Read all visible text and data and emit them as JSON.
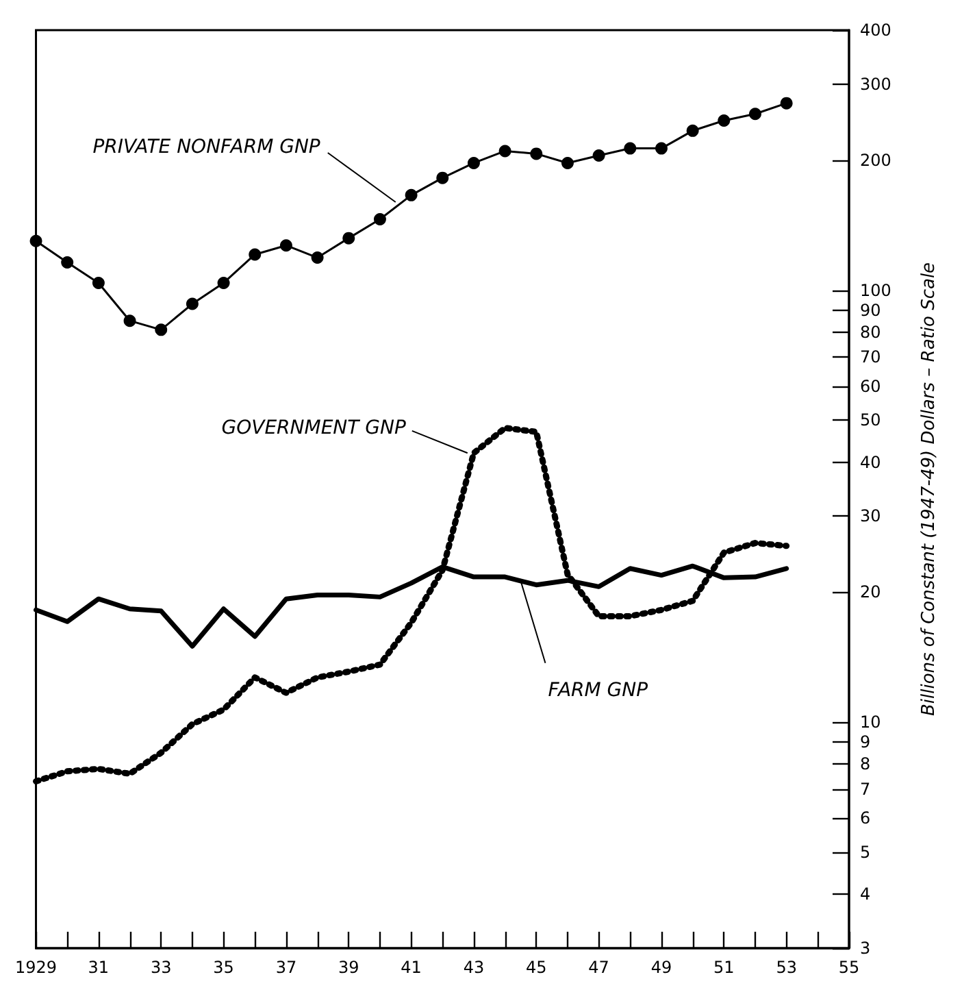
{
  "chart_data": {
    "type": "line",
    "ylabel": "Billions of Constant (1947-49) Dollars – Ratio Scale",
    "log": "y",
    "grid": false,
    "x": [
      1929,
      1930,
      1931,
      1932,
      1933,
      1934,
      1935,
      1936,
      1937,
      1938,
      1939,
      1940,
      1941,
      1942,
      1943,
      1944,
      1945,
      1946,
      1947,
      1948,
      1949,
      1950,
      1951,
      1952,
      1953
    ],
    "xlim": [
      1929,
      1955
    ],
    "xticks": [
      {
        "value": 1929,
        "label": "1929"
      },
      {
        "value": 1930,
        "label": null
      },
      {
        "value": 1931,
        "label": "31"
      },
      {
        "value": 1932,
        "label": null
      },
      {
        "value": 1933,
        "label": "33"
      },
      {
        "value": 1934,
        "label": null
      },
      {
        "value": 1935,
        "label": "35"
      },
      {
        "value": 1936,
        "label": null
      },
      {
        "value": 1937,
        "label": "37"
      },
      {
        "value": 1938,
        "label": null
      },
      {
        "value": 1939,
        "label": "39"
      },
      {
        "value": 1940,
        "label": null
      },
      {
        "value": 1941,
        "label": "41"
      },
      {
        "value": 1942,
        "label": null
      },
      {
        "value": 1943,
        "label": "43"
      },
      {
        "value": 1944,
        "label": null
      },
      {
        "value": 1945,
        "label": "45"
      },
      {
        "value": 1946,
        "label": null
      },
      {
        "value": 1947,
        "label": "47"
      },
      {
        "value": 1948,
        "label": null
      },
      {
        "value": 1949,
        "label": "49"
      },
      {
        "value": 1950,
        "label": null
      },
      {
        "value": 1951,
        "label": "51"
      },
      {
        "value": 1952,
        "label": null
      },
      {
        "value": 1953,
        "label": "53"
      },
      {
        "value": 1954,
        "label": null
      },
      {
        "value": 1955,
        "label": "55"
      }
    ],
    "ylim": [
      3,
      400
    ],
    "yticks": [
      3,
      4,
      5,
      6,
      7,
      8,
      9,
      10,
      20,
      30,
      40,
      50,
      60,
      70,
      80,
      90,
      100,
      200,
      300,
      400
    ],
    "series": [
      {
        "color": "#000000",
        "marker": "circle",
        "line_style": "solid",
        "values": [
          130,
          116,
          104,
          85,
          81,
          93,
          104,
          121,
          127,
          119,
          132,
          146,
          166,
          182,
          197,
          210,
          207,
          197,
          205,
          213,
          213,
          234,
          247,
          256,
          271
        ]
      },
      {
        "color": "#000000",
        "marker": "none",
        "line_style": "solid",
        "values": [
          18.2,
          17.1,
          19.3,
          18.3,
          18.1,
          15.0,
          18.3,
          15.8,
          19.3,
          19.7,
          19.7,
          19.5,
          21.0,
          22.9,
          21.7,
          21.7,
          20.8,
          21.3,
          20.6,
          22.7,
          21.9,
          23.0,
          21.6,
          21.7,
          22.7
        ]
      },
      {
        "color": "#000000",
        "marker": "none",
        "line_style": "dotted",
        "values": [
          7.3,
          7.7,
          7.8,
          7.6,
          8.5,
          9.9,
          10.7,
          12.7,
          11.7,
          12.7,
          13.1,
          13.6,
          17,
          22.5,
          42,
          48,
          47,
          22,
          17.6,
          17.6,
          18.2,
          19.1,
          24.7,
          26,
          25.6
        ]
      }
    ],
    "annotations": [
      {
        "text": "PRIVATE NONFARM GNP",
        "x": 1940.5,
        "y": 160
      },
      {
        "text": "GOVERNMENT GNP",
        "x": 1942.8,
        "y": 42
      },
      {
        "text": "FARM GNP",
        "x": 1944.5,
        "y": 21.25
      }
    ]
  }
}
